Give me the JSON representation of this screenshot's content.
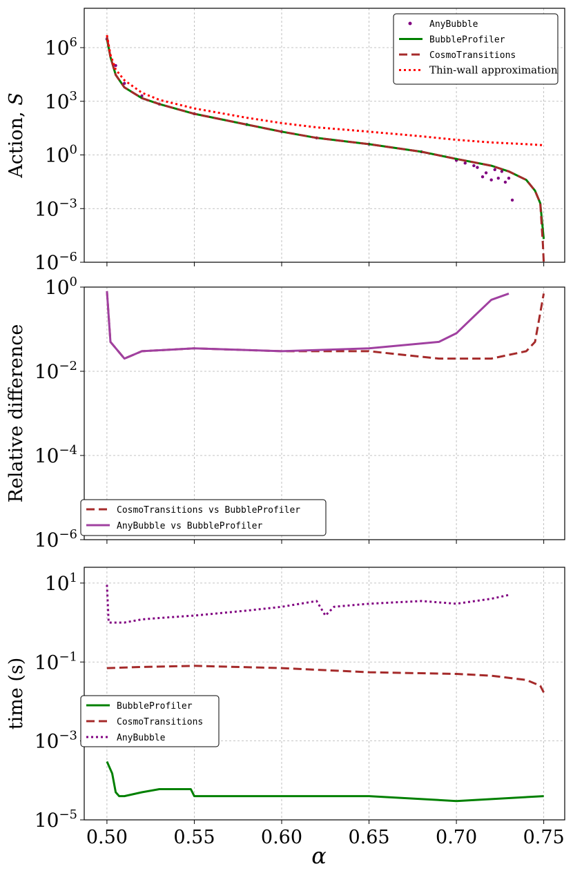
{
  "figure": {
    "xlabel": "α",
    "xlim": [
      0.487,
      0.762
    ],
    "xticks": [
      0.5,
      0.55,
      0.6,
      0.65,
      0.7,
      0.75
    ],
    "xtick_labels": [
      "0.50",
      "0.55",
      "0.60",
      "0.65",
      "0.70",
      "0.75"
    ]
  },
  "chart_data": [
    {
      "type": "line",
      "title": "",
      "ylabel": "Action, S",
      "yscale": "log",
      "ylim_exp": [
        -6,
        8.2
      ],
      "yticks_exp": [
        -6,
        -3,
        0,
        3,
        6
      ],
      "ytick_labels": [
        {
          "base": "10",
          "exp": "−6"
        },
        {
          "base": "10",
          "exp": "−3"
        },
        {
          "base": "10",
          "exp": "0"
        },
        {
          "base": "10",
          "exp": "3"
        },
        {
          "base": "10",
          "exp": "6"
        }
      ],
      "grid": true,
      "legend_position": "top-right",
      "series": [
        {
          "name": "AnyBubble",
          "color": "#800080",
          "style": "dots",
          "x": [
            0.5,
            0.505,
            0.51,
            0.52,
            0.53,
            0.55,
            0.58,
            0.6,
            0.62,
            0.65,
            0.68,
            0.7,
            0.705,
            0.71,
            0.712,
            0.715,
            0.717,
            0.72,
            0.722,
            0.724,
            0.726,
            0.728,
            0.73,
            0.732
          ],
          "y": [
            3000000.0,
            100000.0,
            10000.0,
            2000.0,
            700,
            200,
            50,
            20,
            9,
            4,
            1.5,
            0.5,
            0.35,
            0.25,
            0.2,
            0.06,
            0.1,
            0.04,
            0.15,
            0.05,
            0.12,
            0.03,
            0.05,
            0.003
          ]
        },
        {
          "name": "BubbleProfiler",
          "color": "#008000",
          "style": "solid",
          "x": [
            0.5,
            0.502,
            0.505,
            0.51,
            0.52,
            0.53,
            0.55,
            0.58,
            0.6,
            0.62,
            0.65,
            0.68,
            0.7,
            0.72,
            0.73,
            0.74,
            0.745,
            0.748,
            0.75
          ],
          "y": [
            3000000.0,
            300000.0,
            30000.0,
            6000.0,
            1500.0,
            700,
            200,
            50,
            20,
            9,
            4,
            1.5,
            0.6,
            0.25,
            0.12,
            0.04,
            0.01,
            0.002,
            2e-05
          ]
        },
        {
          "name": "CosmoTransitions",
          "color": "#a52a2a",
          "style": "dashed",
          "x": [
            0.5,
            0.502,
            0.505,
            0.51,
            0.52,
            0.53,
            0.55,
            0.58,
            0.6,
            0.62,
            0.65,
            0.68,
            0.7,
            0.72,
            0.73,
            0.74,
            0.745,
            0.748,
            0.7495,
            0.75
          ],
          "y": [
            4000000.0,
            300000.0,
            30000.0,
            6000.0,
            1500.0,
            700,
            200,
            50,
            20,
            9,
            4,
            1.5,
            0.6,
            0.25,
            0.12,
            0.04,
            0.01,
            0.002,
            1e-05,
            1e-06
          ]
        },
        {
          "name": "Thin-wall approximation",
          "color": "#ff0000",
          "style": "dotted",
          "x": [
            0.5,
            0.502,
            0.505,
            0.51,
            0.52,
            0.53,
            0.55,
            0.58,
            0.6,
            0.62,
            0.65,
            0.68,
            0.7,
            0.72,
            0.74,
            0.75
          ],
          "y": [
            5000000.0,
            400000.0,
            60000.0,
            15000.0,
            3000.0,
            1200.0,
            400,
            120,
            60,
            35,
            20,
            11,
            7,
            5,
            4,
            3.5
          ]
        }
      ]
    },
    {
      "type": "line",
      "title": "",
      "ylabel": "Relative difference",
      "yscale": "log",
      "ylim_exp": [
        -6,
        0
      ],
      "yticks_exp": [
        -6,
        -4,
        -2,
        0
      ],
      "ytick_labels": [
        {
          "base": "10",
          "exp": "−6"
        },
        {
          "base": "10",
          "exp": "−4"
        },
        {
          "base": "10",
          "exp": "−2"
        },
        {
          "base": "10",
          "exp": "0"
        }
      ],
      "grid": true,
      "legend_position": "bottom-left",
      "series": [
        {
          "name": "CosmoTransitions vs BubbleProfiler",
          "color": "#a52a2a",
          "style": "dashed",
          "x": [
            0.5,
            0.502,
            0.51,
            0.52,
            0.55,
            0.6,
            0.65,
            0.69,
            0.7,
            0.72,
            0.74,
            0.745,
            0.75
          ],
          "y": [
            0.8,
            0.05,
            0.02,
            0.03,
            0.035,
            0.03,
            0.03,
            0.02,
            0.02,
            0.02,
            0.03,
            0.05,
            0.7
          ]
        },
        {
          "name": "AnyBubble vs BubbleProfiler",
          "color": "#a040a0",
          "style": "solid",
          "x": [
            0.5,
            0.502,
            0.51,
            0.52,
            0.55,
            0.6,
            0.65,
            0.69,
            0.7,
            0.71,
            0.72,
            0.73
          ],
          "y": [
            0.8,
            0.05,
            0.02,
            0.03,
            0.035,
            0.03,
            0.035,
            0.05,
            0.08,
            0.2,
            0.5,
            0.7
          ]
        }
      ]
    },
    {
      "type": "line",
      "title": "",
      "ylabel": "time (s)",
      "yscale": "log",
      "ylim_exp": [
        -5,
        1.4
      ],
      "yticks_exp": [
        -5,
        -3,
        -1,
        1
      ],
      "ytick_labels": [
        {
          "base": "10",
          "exp": "−5"
        },
        {
          "base": "10",
          "exp": "−3"
        },
        {
          "base": "10",
          "exp": "−1"
        },
        {
          "base": "10",
          "exp": "1"
        }
      ],
      "grid": true,
      "legend_position": "middle-left",
      "series": [
        {
          "name": "BubbleProfiler",
          "color": "#008000",
          "style": "solid",
          "x": [
            0.5,
            0.503,
            0.505,
            0.507,
            0.51,
            0.52,
            0.53,
            0.548,
            0.55,
            0.6,
            0.65,
            0.7,
            0.75
          ],
          "y": [
            0.0003,
            0.00015,
            5e-05,
            4e-05,
            4e-05,
            5e-05,
            6e-05,
            6e-05,
            4e-05,
            4e-05,
            4e-05,
            3e-05,
            4e-05
          ]
        },
        {
          "name": "CosmoTransitions",
          "color": "#a52a2a",
          "style": "dashed",
          "x": [
            0.5,
            0.52,
            0.55,
            0.6,
            0.65,
            0.7,
            0.72,
            0.74,
            0.748,
            0.75
          ],
          "y": [
            0.07,
            0.075,
            0.08,
            0.07,
            0.055,
            0.05,
            0.045,
            0.035,
            0.025,
            0.017
          ]
        },
        {
          "name": "AnyBubble",
          "color": "#800080",
          "style": "dotted",
          "x": [
            0.5,
            0.501,
            0.51,
            0.52,
            0.53,
            0.54,
            0.55,
            0.58,
            0.6,
            0.62,
            0.625,
            0.63,
            0.65,
            0.68,
            0.7,
            0.72,
            0.73
          ],
          "y": [
            9.0,
            1.0,
            1.0,
            1.2,
            1.3,
            1.4,
            1.5,
            2.0,
            2.5,
            3.5,
            1.5,
            2.5,
            3.0,
            3.5,
            3.0,
            4.0,
            5.0
          ]
        }
      ]
    }
  ]
}
